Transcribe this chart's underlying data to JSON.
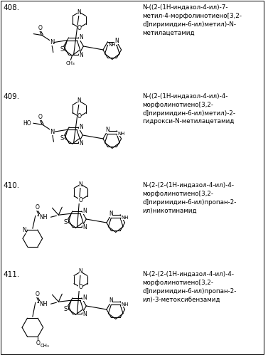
{
  "background_color": "#ffffff",
  "entries": [
    {
      "number": "408.",
      "desc": "N-((2-(1H-индазол-4-ил)-7-\nметил-4-морфолинотиено[3,2-\nd]пиримидин-6-ил)метил)-N-\nметилацетамид"
    },
    {
      "number": "409.",
      "desc": "N-((2-(1H-индазол-4-ил)-4-\nморфолинотиено[3,2-\nd]пиримидин-6-ил)метил)-2-\nгидрокси-N-метилацетамид"
    },
    {
      "number": "410.",
      "desc": "N-(2-(2-(1H-индазол-4-ил)-4-\nморфолинотиено[3,2-\nd]пиримидин-6-ил)пропан-2-\nил)никотинамид"
    },
    {
      "number": "411.",
      "desc": "N-(2-(2-(1H-индазол-4-ил)-4-\nморфолинотиено[3,2-\nd]пиримидин-6-ил)пропан-2-\nил)-3-метоксибензамид"
    }
  ],
  "figsize": [
    3.77,
    4.99
  ],
  "dpi": 100
}
